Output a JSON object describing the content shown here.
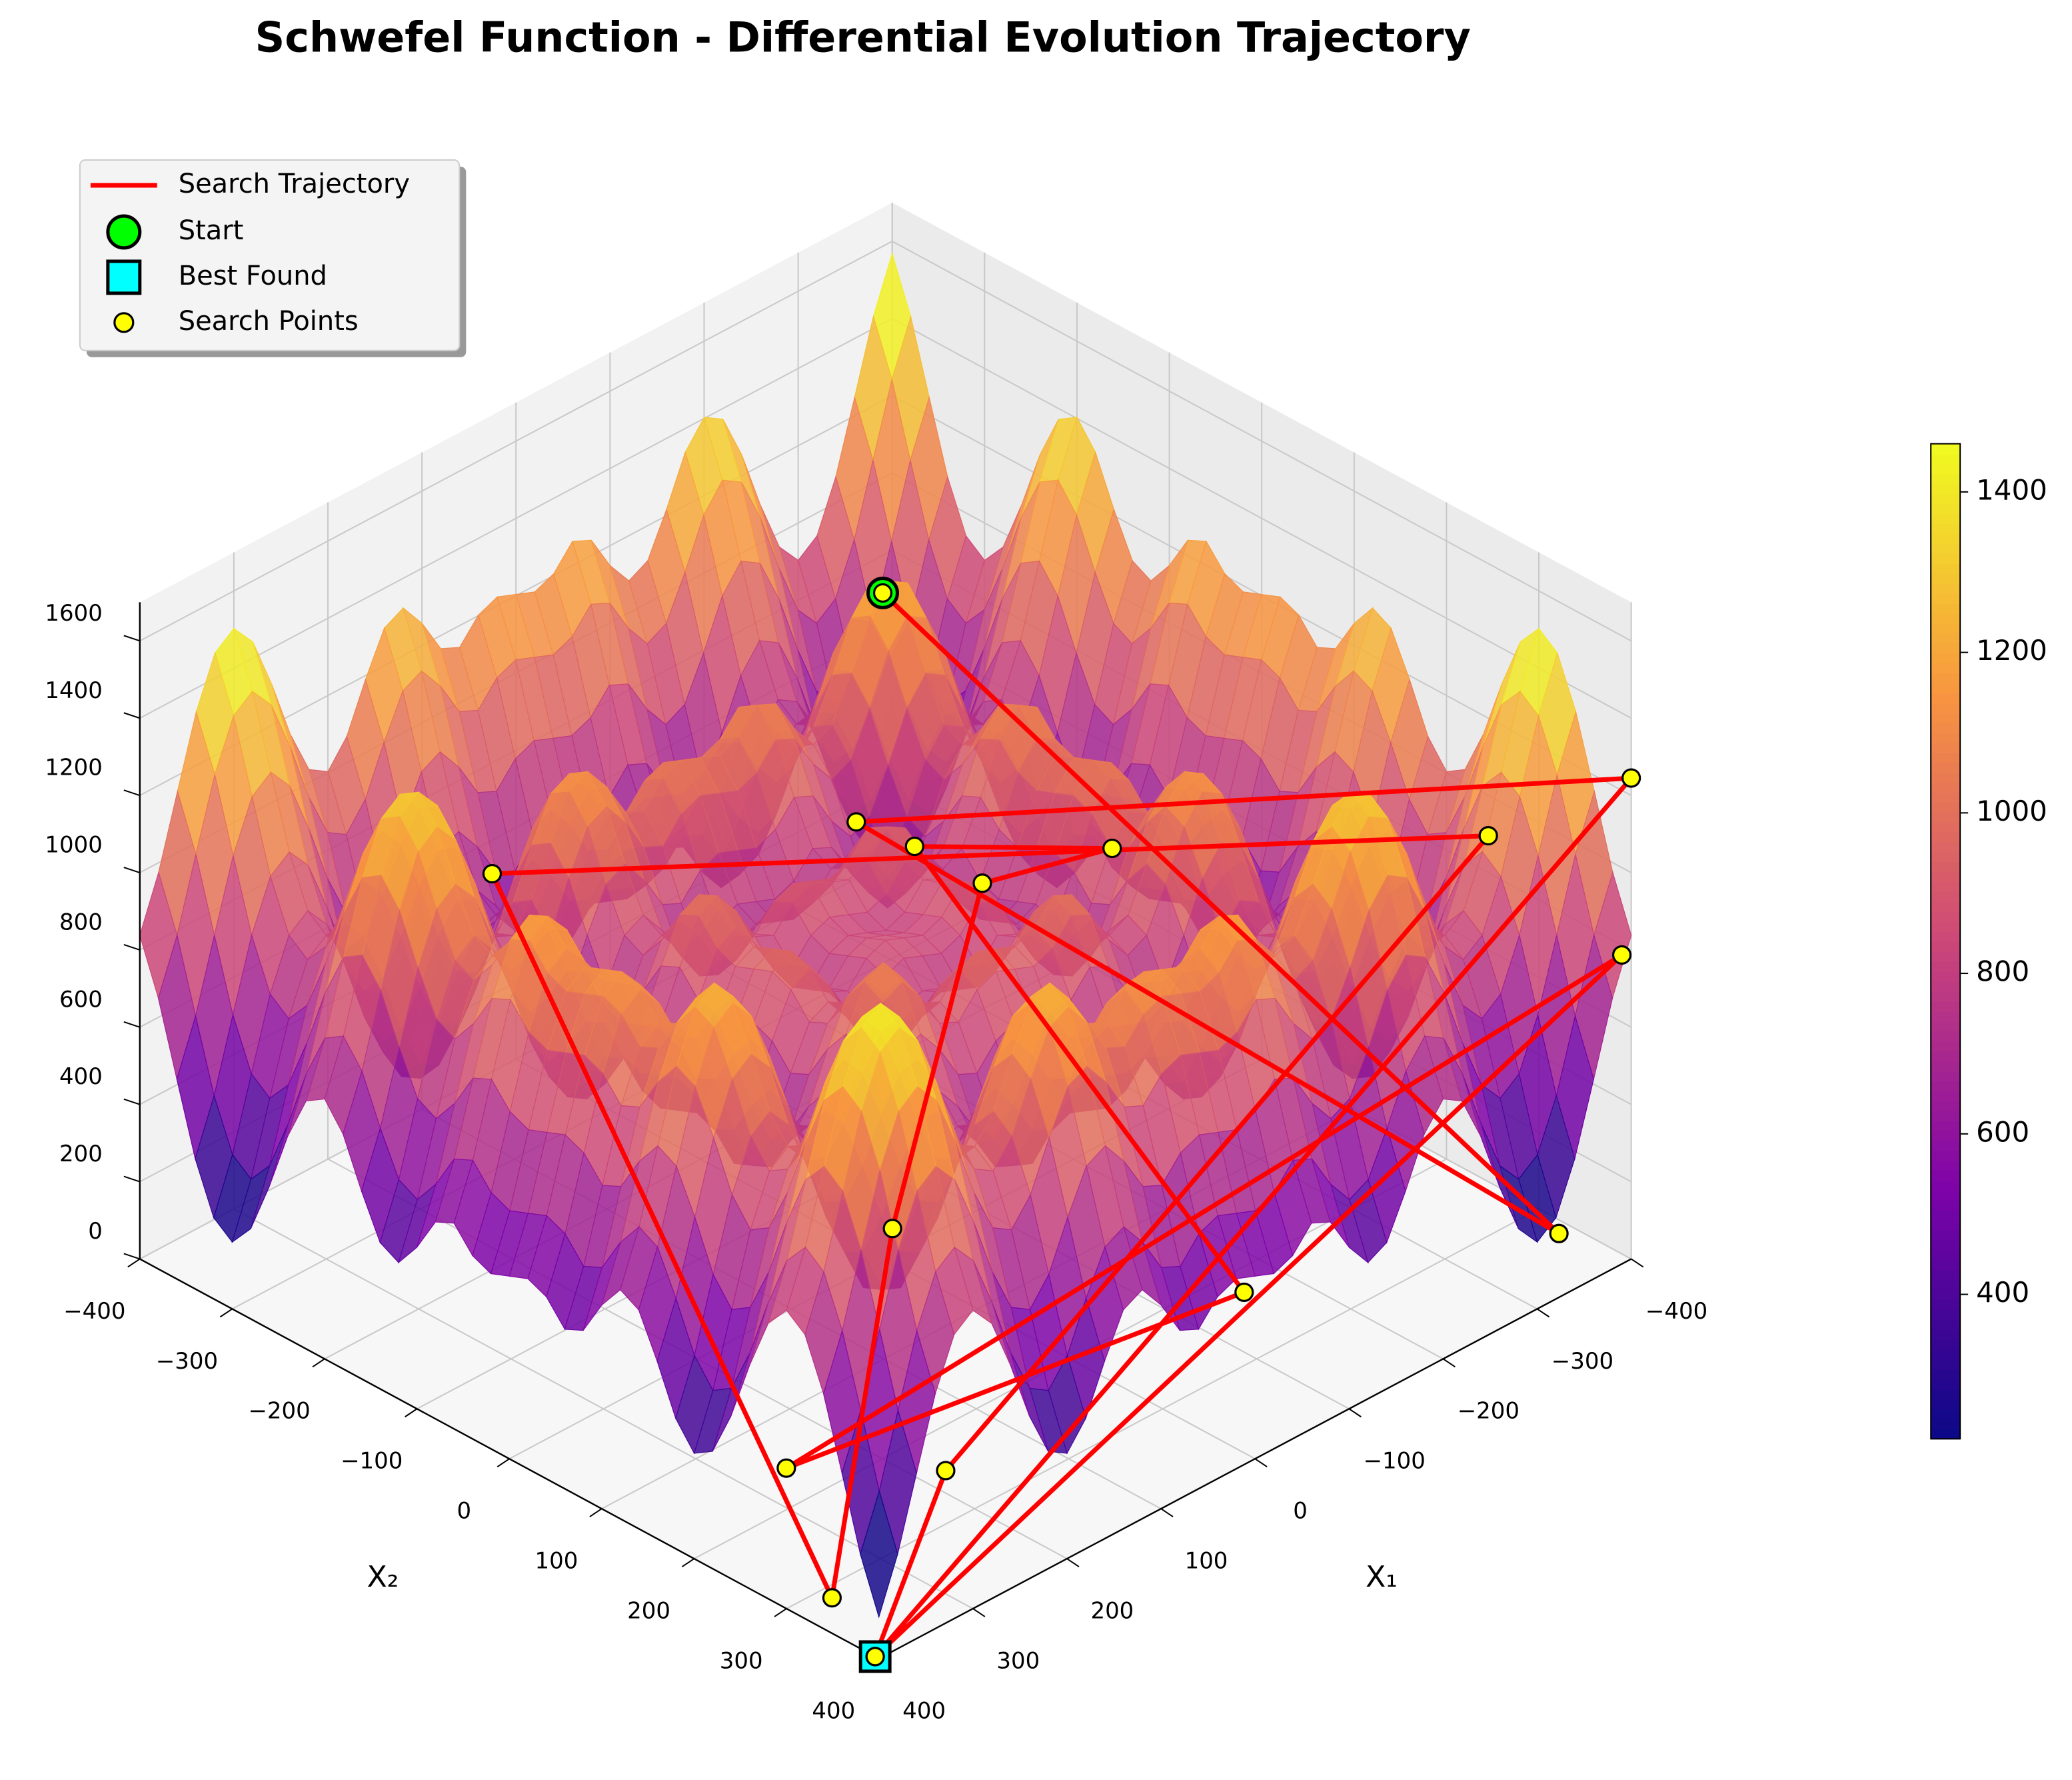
{
  "chart_data": {
    "type": "surface3d",
    "title": "Schwefel Function - Differential Evolution Trajectory",
    "xlabel": "X₁",
    "ylabel": "X₂",
    "xlim": [
      -400,
      400
    ],
    "ylim": [
      -400,
      400
    ],
    "zlim": [
      0,
      1700
    ],
    "xticks": [
      {
        "value": -400,
        "label": "−400"
      },
      {
        "value": -300,
        "label": "−300"
      },
      {
        "value": -200,
        "label": "−200"
      },
      {
        "value": -100,
        "label": "−100"
      },
      0,
      100,
      200,
      300,
      400
    ],
    "yticks": [
      {
        "value": -400,
        "label": "−400"
      },
      {
        "value": -300,
        "label": "−300"
      },
      {
        "value": -200,
        "label": "−200"
      },
      {
        "value": -100,
        "label": "−100"
      },
      0,
      100,
      200,
      300,
      400
    ],
    "zticks": [
      0,
      200,
      400,
      600,
      800,
      1000,
      1200,
      1400,
      1600
    ],
    "colorbar": {
      "colormap": "plasma",
      "clim": [
        220,
        1460
      ],
      "ticks": [
        400,
        600,
        800,
        1000,
        1200,
        1400
      ]
    },
    "legend": "upper left",
    "series": [
      {
        "name": "Search Trajectory",
        "color": "#ff0000",
        "x1": [
          -276,
          -329,
          -73,
          -400,
          400,
          216,
          -360,
          212,
          384,
          81,
          -99,
          -184,
          -80,
          -121,
          299,
          -390,
          400
        ],
        "x2": [
          -284,
          394,
          -106,
          400,
          396,
          285,
          286,
          -210,
          333,
          90,
          4,
          58,
          -50,
          265,
          197,
          400,
          396
        ],
        "z": [
          1000,
          150,
          900,
          1245,
          0,
          100,
          1000,
          1000,
          50,
          300,
          850,
          900,
          900,
          100,
          100,
          800,
          0
        ]
      }
    ],
    "start": {
      "name": "Start",
      "color": "#00ff00",
      "x1": -276,
      "x2": -284,
      "z": 1000
    },
    "best": {
      "name": "Best Found",
      "color": "#00ffff",
      "x1": 400,
      "x2": 396,
      "z": 0
    },
    "points": {
      "name": "Search Points",
      "color": "#ffff00"
    }
  }
}
